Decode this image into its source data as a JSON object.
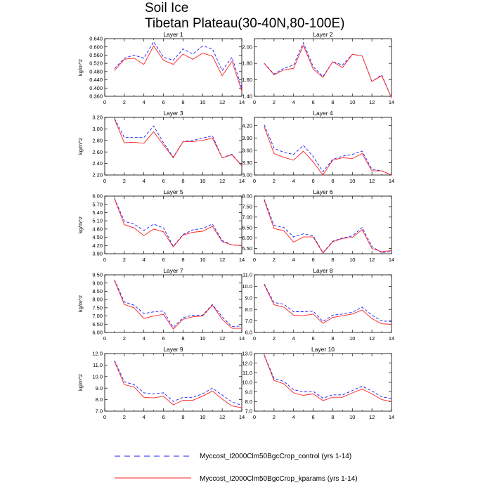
{
  "title": "Soil Ice",
  "subtitle": "Tibetan Plateau(30-40N,80-100E)",
  "colors": {
    "control": "#1a1aff",
    "kparams": "#ff2020",
    "axis": "#000000"
  },
  "legend": [
    {
      "label": "Myccost_I2000Clm50BgcCrop_control (yrs 1-14)",
      "style": "dashed",
      "color": "#1a1aff"
    },
    {
      "label": "Myccost_I2000Clm50BgcCrop_kparams (yrs 1-14)",
      "style": "solid",
      "color": "#ff2020"
    }
  ],
  "chart_data": [
    {
      "type": "line",
      "title": "Layer 1",
      "ylabel": "kg/m^2",
      "xlim": [
        0,
        14
      ],
      "xticks": [
        "0",
        "2",
        "4",
        "6",
        "8",
        "10",
        "12",
        "14"
      ],
      "ylim": [
        0.36,
        0.64
      ],
      "yticks": [
        "0.360",
        "0.400",
        "0.440",
        "0.480",
        "0.520",
        "0.560",
        "0.600",
        "0.640"
      ],
      "x": [
        1,
        2,
        3,
        4,
        5,
        6,
        7,
        8,
        9,
        10,
        11,
        12,
        13,
        14
      ],
      "series": [
        {
          "name": "Myccost_I2000Clm50BgcCrop_control (yrs 1-14)",
          "values": [
            0.495,
            0.545,
            0.56,
            0.545,
            0.625,
            0.55,
            0.535,
            0.59,
            0.565,
            0.605,
            0.59,
            0.485,
            0.55,
            0.4
          ]
        },
        {
          "name": "Myccost_I2000Clm50BgcCrop_kparams (yrs 1-14)",
          "values": [
            0.485,
            0.54,
            0.545,
            0.515,
            0.605,
            0.535,
            0.515,
            0.565,
            0.54,
            0.57,
            0.555,
            0.46,
            0.53,
            0.385
          ]
        }
      ]
    },
    {
      "type": "line",
      "title": "Layer 2",
      "ylabel": "",
      "xlim": [
        0,
        14
      ],
      "xticks": [
        "0",
        "2",
        "4",
        "6",
        "8",
        "10",
        "12",
        "14"
      ],
      "ylim": [
        1.4,
        2.1
      ],
      "yticks": [
        "1.40",
        "1.60",
        "1.80",
        "2.00"
      ],
      "x": [
        1,
        2,
        3,
        4,
        5,
        6,
        7,
        8,
        9,
        10,
        11,
        12,
        13,
        14
      ],
      "series": [
        {
          "name": "Myccost_I2000Clm50BgcCrop_control (yrs 1-14)",
          "values": [
            1.8,
            1.67,
            1.74,
            1.78,
            2.05,
            1.76,
            1.64,
            1.82,
            1.78,
            1.91,
            1.89,
            1.58,
            1.66,
            1.38
          ]
        },
        {
          "name": "Myccost_I2000Clm50BgcCrop_kparams (yrs 1-14)",
          "values": [
            1.8,
            1.66,
            1.72,
            1.74,
            2.02,
            1.73,
            1.63,
            1.82,
            1.75,
            1.91,
            1.89,
            1.58,
            1.65,
            1.38
          ]
        }
      ]
    },
    {
      "type": "line",
      "title": "Layer 3",
      "ylabel": "kg/m^2",
      "xlim": [
        0,
        14
      ],
      "xticks": [
        "0",
        "2",
        "4",
        "6",
        "8",
        "10",
        "12",
        "14"
      ],
      "ylim": [
        2.2,
        3.2
      ],
      "yticks": [
        "2.20",
        "2.40",
        "2.60",
        "2.80",
        "3.00",
        "3.20"
      ],
      "x": [
        1,
        2,
        3,
        4,
        5,
        6,
        7,
        8,
        9,
        10,
        11,
        12,
        13,
        14
      ],
      "series": [
        {
          "name": "Myccost_I2000Clm50BgcCrop_control (yrs 1-14)",
          "values": [
            3.18,
            2.85,
            2.85,
            2.85,
            3.05,
            2.76,
            2.51,
            2.78,
            2.8,
            2.84,
            2.88,
            2.5,
            2.56,
            2.36
          ]
        },
        {
          "name": "Myccost_I2000Clm50BgcCrop_kparams (yrs 1-14)",
          "values": [
            3.17,
            2.76,
            2.77,
            2.75,
            2.95,
            2.72,
            2.5,
            2.78,
            2.78,
            2.8,
            2.84,
            2.5,
            2.55,
            2.36
          ]
        }
      ]
    },
    {
      "type": "line",
      "title": "Layer 4",
      "ylabel": "",
      "xlim": [
        0,
        14
      ],
      "xticks": [
        "0",
        "2",
        "4",
        "6",
        "8",
        "10",
        "12",
        "14"
      ],
      "ylim": [
        3.0,
        4.4
      ],
      "yticks": [
        "3.00",
        "3.30",
        "3.60",
        "3.90",
        "4.20"
      ],
      "x": [
        1,
        2,
        3,
        4,
        5,
        6,
        7,
        8,
        9,
        10,
        11,
        12,
        13,
        14
      ],
      "series": [
        {
          "name": "Myccost_I2000Clm50BgcCrop_control (yrs 1-14)",
          "values": [
            4.22,
            3.65,
            3.55,
            3.5,
            3.72,
            3.45,
            3.08,
            3.38,
            3.46,
            3.5,
            3.58,
            3.14,
            3.1,
            3.0
          ]
        },
        {
          "name": "Myccost_I2000Clm50BgcCrop_kparams (yrs 1-14)",
          "values": [
            4.17,
            3.52,
            3.43,
            3.36,
            3.58,
            3.32,
            3.0,
            3.36,
            3.42,
            3.4,
            3.52,
            3.1,
            3.1,
            3.0
          ]
        }
      ]
    },
    {
      "type": "line",
      "title": "Layer 5",
      "ylabel": "kg/m^2",
      "xlim": [
        0,
        14
      ],
      "xticks": [
        "0",
        "2",
        "4",
        "6",
        "8",
        "10",
        "12",
        "14"
      ],
      "ylim": [
        3.9,
        6.0
      ],
      "yticks": [
        "3.90",
        "4.20",
        "4.50",
        "4.80",
        "5.10",
        "5.40",
        "5.70",
        "6.00"
      ],
      "x": [
        1,
        2,
        3,
        4,
        5,
        6,
        7,
        8,
        9,
        10,
        11,
        12,
        13,
        14
      ],
      "series": [
        {
          "name": "Myccost_I2000Clm50BgcCrop_control (yrs 1-14)",
          "values": [
            5.92,
            5.08,
            4.98,
            4.75,
            4.98,
            4.84,
            4.17,
            4.6,
            4.77,
            4.82,
            4.98,
            4.38,
            4.22,
            4.2
          ]
        },
        {
          "name": "Myccost_I2000Clm50BgcCrop_kparams (yrs 1-14)",
          "values": [
            5.9,
            4.96,
            4.84,
            4.56,
            4.8,
            4.7,
            4.15,
            4.58,
            4.68,
            4.72,
            4.9,
            4.34,
            4.22,
            4.2
          ]
        }
      ]
    },
    {
      "type": "line",
      "title": "Layer 6",
      "ylabel": "",
      "xlim": [
        0,
        14
      ],
      "xticks": [
        "0",
        "2",
        "4",
        "6",
        "8",
        "10",
        "12",
        "14"
      ],
      "ylim": [
        5.25,
        8.0
      ],
      "yticks": [
        "5.50",
        "6.00",
        "6.50",
        "7.00",
        "7.50",
        "8.00"
      ],
      "x": [
        1,
        2,
        3,
        4,
        5,
        6,
        7,
        8,
        9,
        10,
        11,
        12,
        13,
        14
      ],
      "series": [
        {
          "name": "Myccost_I2000Clm50BgcCrop_control (yrs 1-14)",
          "values": [
            7.85,
            6.6,
            6.5,
            6.05,
            6.2,
            6.1,
            5.3,
            5.85,
            6.0,
            6.1,
            6.5,
            5.6,
            5.3,
            5.35
          ]
        },
        {
          "name": "Myccost_I2000Clm50BgcCrop_kparams (yrs 1-14)",
          "values": [
            7.8,
            6.45,
            6.35,
            5.8,
            6.05,
            6.05,
            5.28,
            5.82,
            5.98,
            6.02,
            6.4,
            5.5,
            5.35,
            5.4
          ]
        }
      ]
    },
    {
      "type": "line",
      "title": "Layer 7",
      "ylabel": "kg/m^2",
      "xlim": [
        0,
        14
      ],
      "xticks": [
        "0",
        "2",
        "4",
        "6",
        "8",
        "10",
        "12",
        "14"
      ],
      "ylim": [
        6.0,
        9.5
      ],
      "yticks": [
        "6.00",
        "6.50",
        "7.00",
        "7.50",
        "8.00",
        "8.50",
        "9.00",
        "9.50"
      ],
      "x": [
        1,
        2,
        3,
        4,
        5,
        6,
        7,
        8,
        9,
        10,
        11,
        12,
        13,
        14
      ],
      "series": [
        {
          "name": "Myccost_I2000Clm50BgcCrop_control (yrs 1-14)",
          "values": [
            9.2,
            7.85,
            7.65,
            7.15,
            7.25,
            7.3,
            6.3,
            6.9,
            7.05,
            7.05,
            7.7,
            6.95,
            6.35,
            6.4
          ]
        },
        {
          "name": "Myccost_I2000Clm50BgcCrop_kparams (yrs 1-14)",
          "values": [
            9.15,
            7.7,
            7.5,
            6.85,
            7.0,
            7.1,
            6.2,
            6.8,
            6.95,
            7.0,
            7.65,
            6.8,
            6.25,
            6.25
          ]
        }
      ]
    },
    {
      "type": "line",
      "title": "Layer 8",
      "ylabel": "",
      "xlim": [
        0,
        14
      ],
      "xticks": [
        "0",
        "2",
        "4",
        "6",
        "8",
        "10",
        "12",
        "14"
      ],
      "ylim": [
        6.0,
        11.0
      ],
      "yticks": [
        "6.0",
        "7.0",
        "8.0",
        "9.0",
        "10.0",
        "11.0"
      ],
      "x": [
        1,
        2,
        3,
        4,
        5,
        6,
        7,
        8,
        9,
        10,
        11,
        12,
        13,
        14
      ],
      "series": [
        {
          "name": "Myccost_I2000Clm50BgcCrop_control (yrs 1-14)",
          "values": [
            10.2,
            8.6,
            8.45,
            7.8,
            7.8,
            7.85,
            6.95,
            7.5,
            7.6,
            7.75,
            8.2,
            7.5,
            7.0,
            6.95
          ]
        },
        {
          "name": "Myccost_I2000Clm50BgcCrop_kparams (yrs 1-14)",
          "values": [
            10.15,
            8.4,
            8.2,
            7.5,
            7.45,
            7.6,
            6.8,
            7.3,
            7.45,
            7.6,
            7.95,
            7.2,
            6.75,
            6.7
          ]
        }
      ]
    },
    {
      "type": "line",
      "title": "Layer 9",
      "ylabel": "kg/m^2",
      "xlim": [
        0,
        14
      ],
      "xticks": [
        "0",
        "2",
        "4",
        "6",
        "8",
        "10",
        "12",
        "14"
      ],
      "ylim": [
        7.0,
        12.0
      ],
      "yticks": [
        "7.0",
        "8.0",
        "9.0",
        "10.0",
        "11.0",
        "12.0"
      ],
      "x": [
        1,
        2,
        3,
        4,
        5,
        6,
        7,
        8,
        9,
        10,
        11,
        12,
        13,
        14
      ],
      "series": [
        {
          "name": "Myccost_I2000Clm50BgcCrop_control (yrs 1-14)",
          "values": [
            11.4,
            9.55,
            9.3,
            8.6,
            8.5,
            8.6,
            7.85,
            8.2,
            8.2,
            8.5,
            9.0,
            8.4,
            7.8,
            7.5
          ]
        },
        {
          "name": "Myccost_I2000Clm50BgcCrop_kparams (yrs 1-14)",
          "values": [
            11.3,
            9.3,
            9.1,
            8.2,
            8.15,
            8.3,
            7.55,
            7.95,
            7.95,
            8.3,
            8.75,
            8.05,
            7.45,
            7.3
          ]
        }
      ]
    },
    {
      "type": "line",
      "title": "Layer 10",
      "ylabel": "",
      "xlim": [
        0,
        14
      ],
      "xticks": [
        "0",
        "2",
        "4",
        "6",
        "8",
        "10",
        "12",
        "14"
      ],
      "ylim": [
        7.0,
        13.0
      ],
      "yticks": [
        "7.0",
        "8.0",
        "9.0",
        "10.0",
        "11.0",
        "12.0",
        "13.0"
      ],
      "x": [
        1,
        2,
        3,
        4,
        5,
        6,
        7,
        8,
        9,
        10,
        11,
        12,
        13,
        14
      ],
      "series": [
        {
          "name": "Myccost_I2000Clm50BgcCrop_control (yrs 1-14)",
          "values": [
            12.85,
            10.4,
            10.1,
            9.25,
            9.0,
            9.05,
            8.35,
            8.7,
            8.7,
            9.15,
            9.6,
            9.1,
            8.5,
            8.3
          ]
        },
        {
          "name": "Myccost_I2000Clm50BgcCrop_kparams (yrs 1-14)",
          "values": [
            12.8,
            10.2,
            9.85,
            8.9,
            8.65,
            8.8,
            8.1,
            8.45,
            8.45,
            8.9,
            9.3,
            8.8,
            8.2,
            8.0
          ]
        }
      ]
    }
  ]
}
